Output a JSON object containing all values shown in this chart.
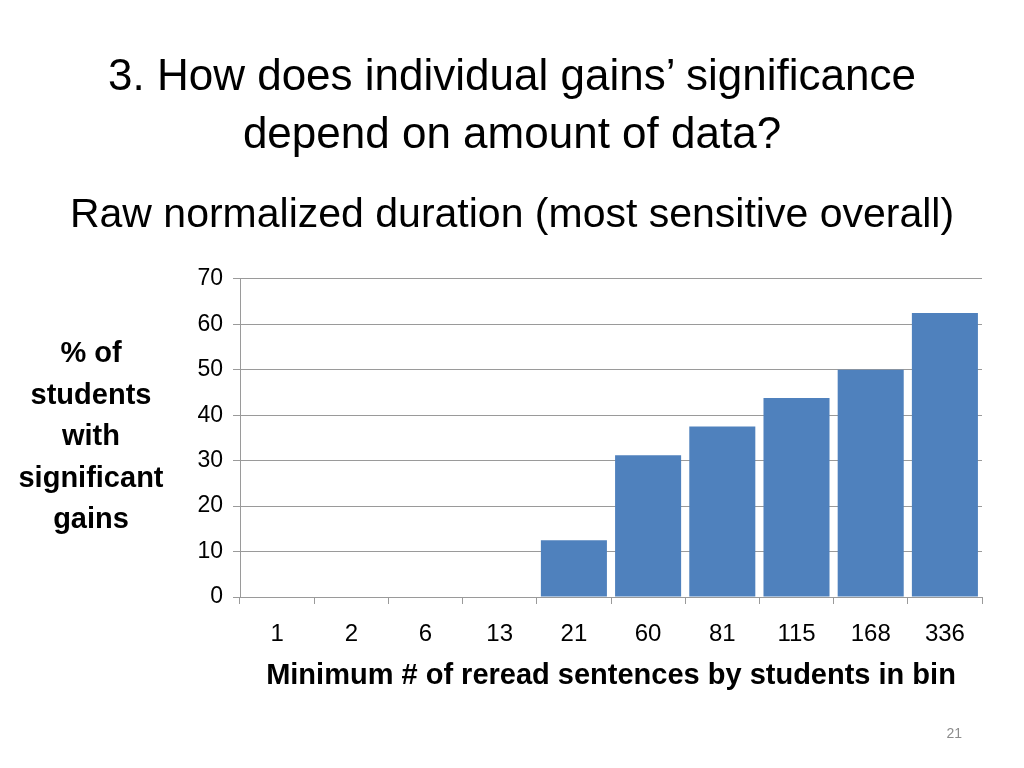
{
  "chart_data": {
    "type": "bar",
    "title": "3. How does individual gains’ significance depend on amount of data?",
    "subtitle": "Raw normalized duration (most sensitive overall)",
    "xlabel": "Minimum # of reread sentences by students in bin",
    "ylabel": "% of students with significant gains",
    "categories": [
      "1",
      "2",
      "6",
      "13",
      "21",
      "60",
      "81",
      "115",
      "168",
      "336"
    ],
    "values": [
      0,
      0,
      0,
      0,
      12.5,
      31.2,
      37.5,
      43.8,
      50,
      62.5
    ],
    "color": "#4f81bd",
    "ylim": [
      0,
      70
    ],
    "yticks": [
      0,
      10,
      20,
      30,
      40,
      50,
      60,
      70
    ],
    "grid": "y",
    "annotations": [
      "21"
    ]
  }
}
